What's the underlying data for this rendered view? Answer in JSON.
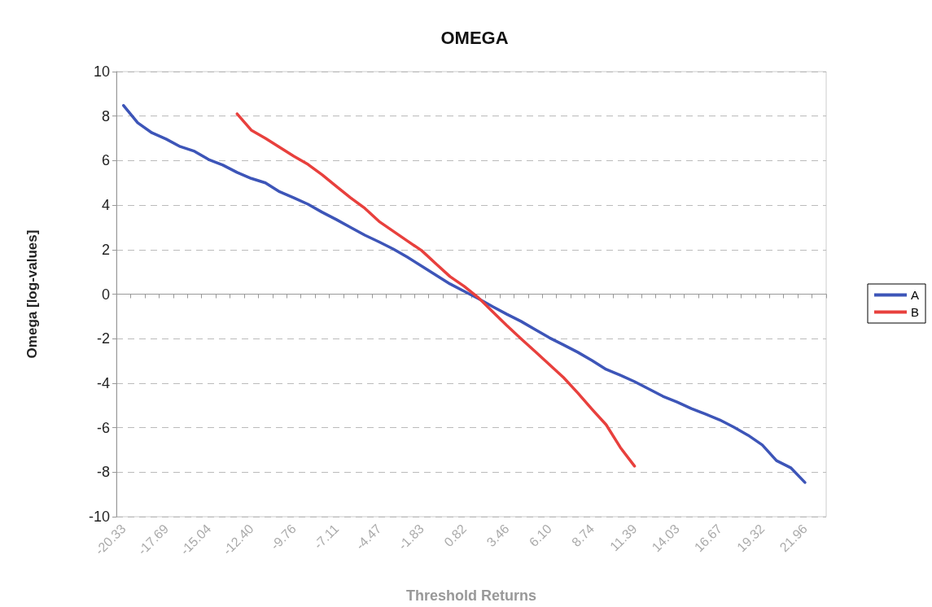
{
  "chart_data": {
    "type": "line",
    "title": "OMEGA",
    "xlabel": "Threshold Returns",
    "ylabel": "Omega [log-values]",
    "categories": [
      "-20.33",
      null,
      null,
      "-17.69",
      null,
      null,
      "-15.04",
      null,
      null,
      "-12.40",
      null,
      null,
      "-9.76",
      null,
      null,
      "-7.11",
      null,
      null,
      "-4.47",
      null,
      null,
      "-1.83",
      null,
      null,
      "0.82",
      null,
      null,
      "3.46",
      null,
      null,
      "6.10",
      null,
      null,
      "8.74",
      null,
      null,
      "11.39",
      null,
      null,
      "14.03",
      null,
      null,
      "16.67",
      null,
      null,
      "19.32",
      null,
      null,
      "21.96",
      null
    ],
    "series": [
      {
        "name": "A",
        "color": "#3d55b8",
        "values": [
          8.48,
          7.7,
          7.25,
          6.97,
          6.63,
          6.42,
          6.05,
          5.8,
          5.47,
          5.2,
          5.0,
          4.6,
          4.33,
          4.04,
          3.68,
          3.35,
          3.0,
          2.65,
          2.35,
          2.03,
          1.66,
          1.26,
          0.86,
          0.46,
          0.13,
          -0.2,
          -0.56,
          -0.9,
          -1.22,
          -1.59,
          -1.96,
          -2.28,
          -2.61,
          -2.98,
          -3.38,
          -3.64,
          -3.93,
          -4.26,
          -4.59,
          -4.85,
          -5.14,
          -5.39,
          -5.65,
          -5.98,
          -6.34,
          -6.78,
          -7.48,
          -7.8,
          -8.46,
          null
        ]
      },
      {
        "name": "B",
        "color": "#e8403d",
        "values": [
          null,
          null,
          null,
          null,
          null,
          null,
          null,
          null,
          8.1,
          7.37,
          7.0,
          6.6,
          6.2,
          5.83,
          5.36,
          4.84,
          4.33,
          3.86,
          3.27,
          2.83,
          2.39,
          1.96,
          1.37,
          0.79,
          0.35,
          -0.16,
          -0.79,
          -1.41,
          -2.0,
          -2.58,
          -3.16,
          -3.75,
          -4.44,
          -5.17,
          -5.87,
          -6.89,
          -7.73,
          null,
          null,
          null,
          null,
          null,
          null,
          null,
          null,
          null,
          null,
          null,
          null,
          null
        ]
      }
    ],
    "ylim": [
      -10,
      10
    ],
    "yticks": [
      -10,
      -8,
      -6,
      -4,
      -2,
      0,
      2,
      4,
      6,
      8,
      10
    ],
    "grid": "y",
    "legend": "right",
    "marker": "none",
    "line_style": "solid"
  }
}
